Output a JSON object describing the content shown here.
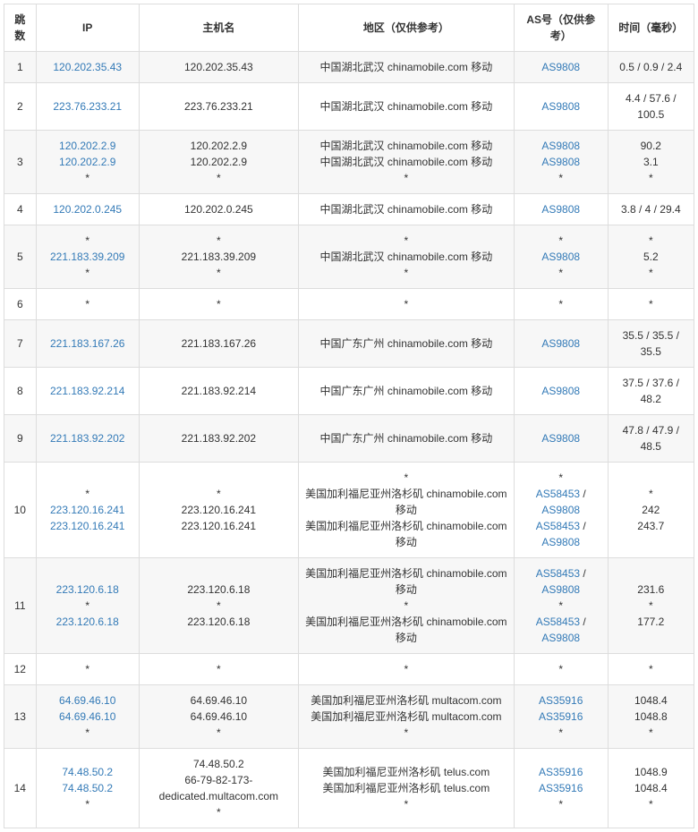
{
  "columns": {
    "hop": "跳数",
    "ip": "IP",
    "host": "主机名",
    "region": "地区（仅供参考）",
    "as": "AS号（仅供参考）",
    "time": "时间（毫秒）"
  },
  "rows": [
    {
      "hop": "1",
      "ip": [
        {
          "text": "120.202.35.43",
          "link": true
        }
      ],
      "host": [
        {
          "text": "120.202.35.43"
        }
      ],
      "region": [
        {
          "text": "中国湖北武汉 chinamobile.com 移动"
        }
      ],
      "as": [
        [
          {
            "text": "AS9808",
            "link": true
          }
        ]
      ],
      "time": [
        {
          "text": "0.5 / 0.9 / 2.4"
        }
      ]
    },
    {
      "hop": "2",
      "ip": [
        {
          "text": "223.76.233.21",
          "link": true
        }
      ],
      "host": [
        {
          "text": "223.76.233.21"
        }
      ],
      "region": [
        {
          "text": "中国湖北武汉 chinamobile.com 移动"
        }
      ],
      "as": [
        [
          {
            "text": "AS9808",
            "link": true
          }
        ]
      ],
      "time": [
        {
          "text": "4.4 / 57.6 / 100.5"
        }
      ]
    },
    {
      "hop": "3",
      "ip": [
        {
          "text": "120.202.2.9",
          "link": true
        },
        {
          "text": "120.202.2.9",
          "link": true
        },
        {
          "text": "*"
        }
      ],
      "host": [
        {
          "text": "120.202.2.9"
        },
        {
          "text": "120.202.2.9"
        },
        {
          "text": "*"
        }
      ],
      "region": [
        {
          "text": "中国湖北武汉 chinamobile.com 移动"
        },
        {
          "text": "中国湖北武汉 chinamobile.com 移动"
        },
        {
          "text": "*"
        }
      ],
      "as": [
        [
          {
            "text": "AS9808",
            "link": true
          }
        ],
        [
          {
            "text": "AS9808",
            "link": true
          }
        ],
        [
          {
            "text": "*"
          }
        ]
      ],
      "time": [
        {
          "text": "90.2"
        },
        {
          "text": "3.1"
        },
        {
          "text": "*"
        }
      ]
    },
    {
      "hop": "4",
      "ip": [
        {
          "text": "120.202.0.245",
          "link": true
        }
      ],
      "host": [
        {
          "text": "120.202.0.245"
        }
      ],
      "region": [
        {
          "text": "中国湖北武汉 chinamobile.com 移动"
        }
      ],
      "as": [
        [
          {
            "text": "AS9808",
            "link": true
          }
        ]
      ],
      "time": [
        {
          "text": "3.8 / 4 / 29.4"
        }
      ]
    },
    {
      "hop": "5",
      "ip": [
        {
          "text": "*"
        },
        {
          "text": "221.183.39.209",
          "link": true
        },
        {
          "text": "*"
        }
      ],
      "host": [
        {
          "text": "*"
        },
        {
          "text": "221.183.39.209"
        },
        {
          "text": "*"
        }
      ],
      "region": [
        {
          "text": "*"
        },
        {
          "text": "中国湖北武汉 chinamobile.com 移动"
        },
        {
          "text": "*"
        }
      ],
      "as": [
        [
          {
            "text": "*"
          }
        ],
        [
          {
            "text": "AS9808",
            "link": true
          }
        ],
        [
          {
            "text": "*"
          }
        ]
      ],
      "time": [
        {
          "text": "*"
        },
        {
          "text": "5.2"
        },
        {
          "text": "*"
        }
      ]
    },
    {
      "hop": "6",
      "ip": [
        {
          "text": "*"
        }
      ],
      "host": [
        {
          "text": "*"
        }
      ],
      "region": [
        {
          "text": "*"
        }
      ],
      "as": [
        [
          {
            "text": "*"
          }
        ]
      ],
      "time": [
        {
          "text": "*"
        }
      ]
    },
    {
      "hop": "7",
      "ip": [
        {
          "text": "221.183.167.26",
          "link": true
        }
      ],
      "host": [
        {
          "text": "221.183.167.26"
        }
      ],
      "region": [
        {
          "text": "中国广东广州 chinamobile.com 移动"
        }
      ],
      "as": [
        [
          {
            "text": "AS9808",
            "link": true
          }
        ]
      ],
      "time": [
        {
          "text": "35.5 / 35.5 / 35.5"
        }
      ]
    },
    {
      "hop": "8",
      "ip": [
        {
          "text": "221.183.92.214",
          "link": true
        }
      ],
      "host": [
        {
          "text": "221.183.92.214"
        }
      ],
      "region": [
        {
          "text": "中国广东广州 chinamobile.com 移动"
        }
      ],
      "as": [
        [
          {
            "text": "AS9808",
            "link": true
          }
        ]
      ],
      "time": [
        {
          "text": "37.5 / 37.6 / 48.2"
        }
      ]
    },
    {
      "hop": "9",
      "ip": [
        {
          "text": "221.183.92.202",
          "link": true
        }
      ],
      "host": [
        {
          "text": "221.183.92.202"
        }
      ],
      "region": [
        {
          "text": "中国广东广州 chinamobile.com 移动"
        }
      ],
      "as": [
        [
          {
            "text": "AS9808",
            "link": true
          }
        ]
      ],
      "time": [
        {
          "text": "47.8 / 47.9 / 48.5"
        }
      ]
    },
    {
      "hop": "10",
      "ip": [
        {
          "text": "*"
        },
        {
          "text": "223.120.16.241",
          "link": true
        },
        {
          "text": "223.120.16.241",
          "link": true
        }
      ],
      "host": [
        {
          "text": "*"
        },
        {
          "text": "223.120.16.241"
        },
        {
          "text": "223.120.16.241"
        }
      ],
      "region": [
        {
          "text": "*"
        },
        {
          "text": "美国加利福尼亚州洛杉矶 chinamobile.com 移动"
        },
        {
          "text": "美国加利福尼亚州洛杉矶 chinamobile.com 移动"
        }
      ],
      "as": [
        [
          {
            "text": "*"
          }
        ],
        [
          {
            "text": "AS58453",
            "link": true
          },
          {
            "text": " / "
          },
          {
            "text": "AS9808",
            "link": true
          }
        ],
        [
          {
            "text": "AS58453",
            "link": true
          },
          {
            "text": " / "
          },
          {
            "text": "AS9808",
            "link": true
          }
        ]
      ],
      "time": [
        {
          "text": "*"
        },
        {
          "text": "242"
        },
        {
          "text": "243.7"
        }
      ]
    },
    {
      "hop": "11",
      "ip": [
        {
          "text": "223.120.6.18",
          "link": true
        },
        {
          "text": "*"
        },
        {
          "text": "223.120.6.18",
          "link": true
        }
      ],
      "host": [
        {
          "text": "223.120.6.18"
        },
        {
          "text": "*"
        },
        {
          "text": "223.120.6.18"
        }
      ],
      "region": [
        {
          "text": "美国加利福尼亚州洛杉矶 chinamobile.com 移动"
        },
        {
          "text": "*"
        },
        {
          "text": "美国加利福尼亚州洛杉矶 chinamobile.com 移动"
        }
      ],
      "as": [
        [
          {
            "text": "AS58453",
            "link": true
          },
          {
            "text": " / "
          },
          {
            "text": "AS9808",
            "link": true
          }
        ],
        [
          {
            "text": "*"
          }
        ],
        [
          {
            "text": "AS58453",
            "link": true
          },
          {
            "text": " / "
          },
          {
            "text": "AS9808",
            "link": true
          }
        ]
      ],
      "time": [
        {
          "text": "231.6"
        },
        {
          "text": "*"
        },
        {
          "text": "177.2"
        }
      ]
    },
    {
      "hop": "12",
      "ip": [
        {
          "text": "*"
        }
      ],
      "host": [
        {
          "text": "*"
        }
      ],
      "region": [
        {
          "text": "*"
        }
      ],
      "as": [
        [
          {
            "text": "*"
          }
        ]
      ],
      "time": [
        {
          "text": "*"
        }
      ]
    },
    {
      "hop": "13",
      "ip": [
        {
          "text": "64.69.46.10",
          "link": true
        },
        {
          "text": "64.69.46.10",
          "link": true
        },
        {
          "text": "*"
        }
      ],
      "host": [
        {
          "text": "64.69.46.10"
        },
        {
          "text": "64.69.46.10"
        },
        {
          "text": "*"
        }
      ],
      "region": [
        {
          "text": "美国加利福尼亚州洛杉矶 multacom.com"
        },
        {
          "text": "美国加利福尼亚州洛杉矶 multacom.com"
        },
        {
          "text": "*"
        }
      ],
      "as": [
        [
          {
            "text": "AS35916",
            "link": true
          }
        ],
        [
          {
            "text": "AS35916",
            "link": true
          }
        ],
        [
          {
            "text": "*"
          }
        ]
      ],
      "time": [
        {
          "text": "1048.4"
        },
        {
          "text": "1048.8"
        },
        {
          "text": "*"
        }
      ]
    },
    {
      "hop": "14",
      "ip": [
        {
          "text": "74.48.50.2",
          "link": true
        },
        {
          "text": "74.48.50.2",
          "link": true
        },
        {
          "text": "*"
        }
      ],
      "host": [
        {
          "text": "74.48.50.2"
        },
        {
          "text": "66-79-82-173-dedicated.multacom.com"
        },
        {
          "text": "*"
        }
      ],
      "region": [
        {
          "text": "美国加利福尼亚州洛杉矶 telus.com"
        },
        {
          "text": "美国加利福尼亚州洛杉矶 telus.com"
        },
        {
          "text": "*"
        }
      ],
      "as": [
        [
          {
            "text": "AS35916",
            "link": true
          }
        ],
        [
          {
            "text": "AS35916",
            "link": true
          }
        ],
        [
          {
            "text": "*"
          }
        ]
      ],
      "time": [
        {
          "text": "1048.9"
        },
        {
          "text": "1048.4"
        },
        {
          "text": "*"
        }
      ]
    }
  ]
}
